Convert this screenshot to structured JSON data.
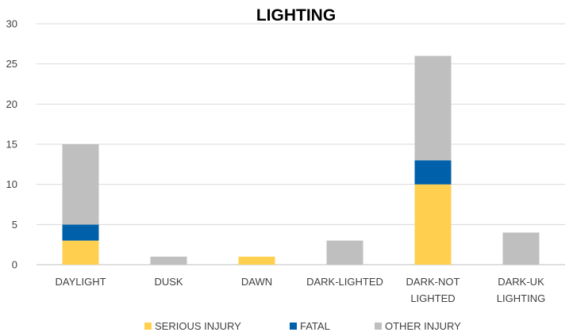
{
  "chart_data": {
    "type": "bar",
    "stacked": true,
    "title": "LIGHTING",
    "categories": [
      [
        "DAYLIGHT"
      ],
      [
        "DUSK"
      ],
      [
        "DAWN"
      ],
      [
        "DARK-LIGHTED"
      ],
      [
        "DARK-NOT",
        "LIGHTED"
      ],
      [
        "DARK-UK",
        "LIGHTING"
      ]
    ],
    "series": [
      {
        "name": "SERIOUS INJURY",
        "color": "#FFD050",
        "values": [
          3,
          0,
          1,
          0,
          10,
          0
        ]
      },
      {
        "name": "FATAL",
        "color": "#0060AA",
        "values": [
          2,
          0,
          0,
          0,
          3,
          0
        ]
      },
      {
        "name": "OTHER INJURY",
        "color": "#BFBFBF",
        "values": [
          10,
          1,
          0,
          3,
          13,
          4
        ]
      }
    ],
    "ylim": [
      0,
      30
    ],
    "yticks": [
      0,
      5,
      10,
      15,
      20,
      25,
      30
    ],
    "grid": true,
    "legend_position": "bottom"
  }
}
